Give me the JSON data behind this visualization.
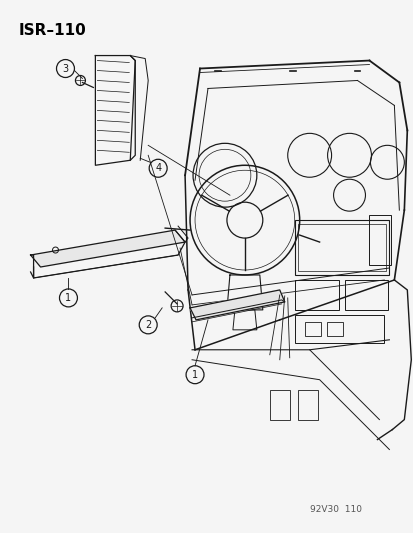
{
  "title": "ISR–110",
  "background_color": "#f5f5f5",
  "text_color": "#000000",
  "line_color": "#1a1a1a",
  "watermark": "92V30  110",
  "figsize": [
    4.14,
    5.33
  ],
  "dpi": 100
}
